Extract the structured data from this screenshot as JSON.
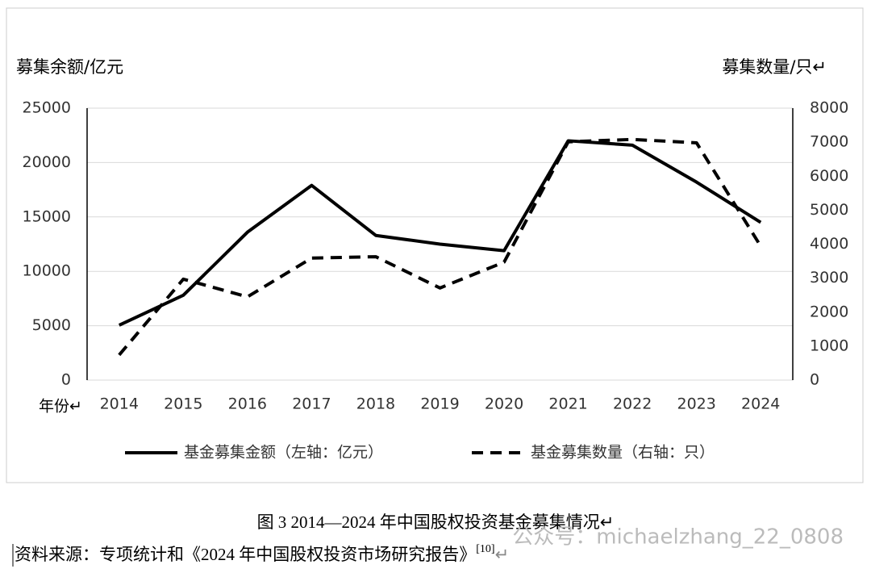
{
  "chart_data": {
    "type": "line",
    "y_label": "募集余额/亿元",
    "y2_label": "募集数量/只↵",
    "x_label": "年份↵",
    "categories": [
      "2014",
      "2015",
      "2016",
      "2017",
      "2018",
      "2019",
      "2020",
      "2021",
      "2022",
      "2023",
      "2024"
    ],
    "series": [
      {
        "name": "基金募集金额（左轴：亿元）",
        "color": "#000000",
        "line_style": "solid",
        "values": [
          5050,
          7800,
          13600,
          17900,
          13300,
          12500,
          11900,
          22000,
          21600,
          18200,
          14500
        ]
      },
      {
        "name": "基金募集数量（右轴：只）",
        "color": "#000000",
        "line_style": "dashed",
        "axis": "y2",
        "values": [
          740,
          2970,
          2450,
          3590,
          3630,
          2710,
          3470,
          7010,
          7080,
          6980,
          3940
        ]
      }
    ],
    "ylim": [
      0,
      25000
    ],
    "yticks": [
      0,
      5000,
      10000,
      15000,
      20000,
      25000
    ],
    "y2lim": [
      0,
      8000
    ],
    "y2ticks": [
      0,
      1000,
      2000,
      3000,
      4000,
      5000,
      6000,
      7000,
      8000
    ],
    "grid": true,
    "legend": "bottom"
  },
  "caption": "图 3 2014—2024 年中国股权投资基金募集情况↵",
  "source": {
    "text": "资料来源：专项统计和《2024 年中国股权投资市场研究报告》",
    "ref": "[10]",
    "mark": "↵"
  },
  "watermark": "公众号：michaelzhang_22_0808"
}
